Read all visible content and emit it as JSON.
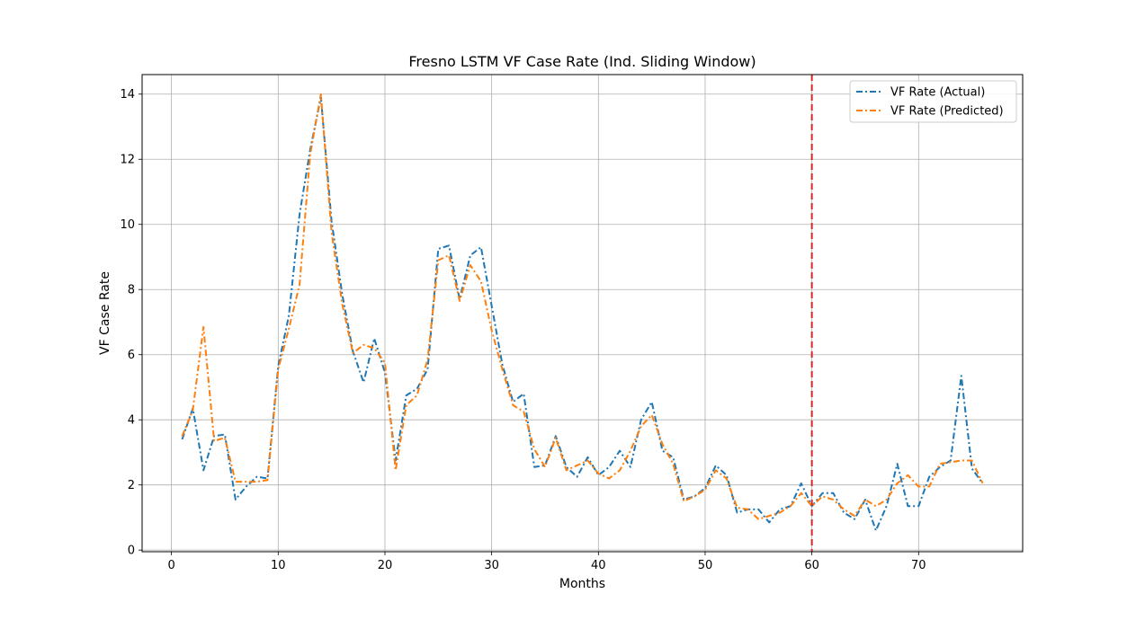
{
  "chart_data": {
    "type": "line",
    "title": "Fresno LSTM VF Case Rate (Ind. Sliding Window)",
    "xlabel": "Months",
    "ylabel": "VF Case Rate",
    "xlim": [
      -2.75,
      79.75
    ],
    "ylim": [
      -0.05,
      14.6
    ],
    "xticks": [
      0,
      10,
      20,
      30,
      40,
      50,
      60,
      70
    ],
    "yticks": [
      0,
      2,
      4,
      6,
      8,
      10,
      12,
      14
    ],
    "grid": true,
    "legend_position": "top-right",
    "vline": {
      "x": 60,
      "color": "#d62728",
      "style": "dashed"
    },
    "x": [
      1,
      2,
      3,
      4,
      5,
      6,
      7,
      8,
      9,
      10,
      11,
      12,
      13,
      14,
      15,
      16,
      17,
      18,
      19,
      20,
      21,
      22,
      23,
      24,
      25,
      26,
      27,
      28,
      29,
      30,
      31,
      32,
      33,
      34,
      35,
      36,
      37,
      38,
      39,
      40,
      41,
      42,
      43,
      44,
      45,
      46,
      47,
      48,
      49,
      50,
      51,
      52,
      53,
      54,
      55,
      56,
      57,
      58,
      59,
      60,
      61,
      62,
      63,
      64,
      65,
      66,
      67,
      68,
      69,
      70,
      71,
      72,
      73,
      74,
      75,
      76
    ],
    "series": [
      {
        "name": "VF Rate (Actual)",
        "color": "#1f77b4",
        "values": [
          3.4,
          4.35,
          2.45,
          3.5,
          3.55,
          1.55,
          1.95,
          2.25,
          2.2,
          5.65,
          7.2,
          10.3,
          12.3,
          13.9,
          10.1,
          7.85,
          6.1,
          5.15,
          6.5,
          5.45,
          2.75,
          4.75,
          4.95,
          5.55,
          9.25,
          9.35,
          7.7,
          9.05,
          9.3,
          7.5,
          5.7,
          4.55,
          4.8,
          2.55,
          2.6,
          3.5,
          2.55,
          2.25,
          2.85,
          2.3,
          2.55,
          3.05,
          2.55,
          4.0,
          4.55,
          3.05,
          2.85,
          1.55,
          1.65,
          1.9,
          2.6,
          2.3,
          1.15,
          1.25,
          1.25,
          0.85,
          1.25,
          1.35,
          2.05,
          1.35,
          1.75,
          1.75,
          1.15,
          0.95,
          1.55,
          0.6,
          1.35,
          2.65,
          1.35,
          1.35,
          2.25,
          2.55,
          2.75,
          5.35,
          2.5,
          2.05
        ]
      },
      {
        "name": "VF Rate (Predicted)",
        "color": "#ff7f0e",
        "values": [
          3.5,
          4.3,
          6.85,
          3.35,
          3.45,
          2.1,
          2.1,
          2.1,
          2.15,
          5.55,
          6.8,
          8.15,
          12.15,
          14.0,
          9.75,
          7.55,
          6.05,
          6.3,
          6.2,
          5.75,
          2.45,
          4.45,
          4.75,
          5.85,
          8.9,
          9.05,
          7.65,
          8.75,
          8.25,
          6.75,
          5.55,
          4.45,
          4.25,
          3.1,
          2.55,
          3.45,
          2.45,
          2.6,
          2.75,
          2.35,
          2.2,
          2.45,
          3.05,
          3.8,
          4.15,
          3.25,
          2.65,
          1.5,
          1.65,
          1.85,
          2.45,
          2.2,
          1.3,
          1.25,
          0.95,
          1.05,
          1.15,
          1.35,
          1.75,
          1.35,
          1.65,
          1.55,
          1.25,
          1.05,
          1.55,
          1.35,
          1.55,
          2.05,
          2.3,
          1.95,
          1.95,
          2.65,
          2.7,
          2.75,
          2.75,
          2.05
        ]
      }
    ]
  }
}
